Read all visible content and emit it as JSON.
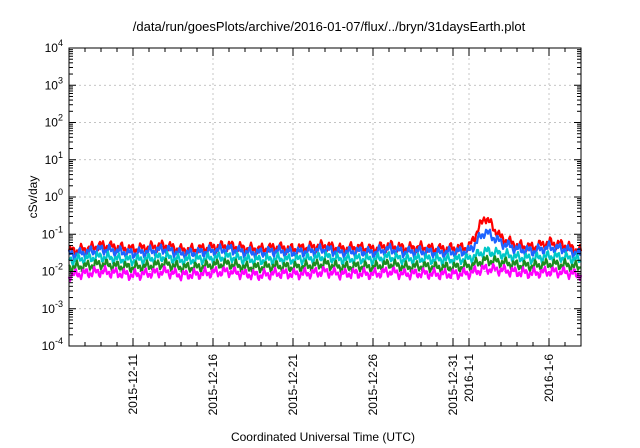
{
  "chart_data": {
    "type": "line",
    "title": "/data/run/goesPlots/archive/2016-01-07/flux/../bryn/31daysEarth.plot",
    "xlabel": "Coordinated Universal Time (UTC)",
    "ylabel": "cSv/day",
    "yscale": "log",
    "ylim": [
      0.0001,
      10000
    ],
    "xlim": [
      "2015-12-07",
      "2016-01-08"
    ],
    "grid": true,
    "legend": "none",
    "y_ticks": [
      {
        "base": "10",
        "exp": "-4",
        "value": 0.0001
      },
      {
        "base": "10",
        "exp": "-3",
        "value": 0.001
      },
      {
        "base": "10",
        "exp": "-2",
        "value": 0.01
      },
      {
        "base": "10",
        "exp": "-1",
        "value": 0.1
      },
      {
        "base": "10",
        "exp": "0",
        "value": 1
      },
      {
        "base": "10",
        "exp": "1",
        "value": 10
      },
      {
        "base": "10",
        "exp": "2",
        "value": 100
      },
      {
        "base": "10",
        "exp": "3",
        "value": 1000
      },
      {
        "base": "10",
        "exp": "4",
        "value": 10000
      }
    ],
    "x_ticks": [
      {
        "date": "2015-12-11",
        "label": "2015-12-11"
      },
      {
        "date": "2015-12-16",
        "label": "2015-12-16"
      },
      {
        "date": "2015-12-21",
        "label": "2015-12-21"
      },
      {
        "date": "2015-12-26",
        "label": "2015-12-26"
      },
      {
        "date": "2015-12-31",
        "label": "2015-12-31"
      },
      {
        "date": "2016-01-01",
        "label": "2016-1-1"
      },
      {
        "date": "2016-01-06",
        "label": "2016-1-6"
      }
    ],
    "series": [
      {
        "color": "#ff0000",
        "x": [
          "2015-12-07",
          "2015-12-08",
          "2015-12-09",
          "2015-12-10",
          "2015-12-11",
          "2015-12-12",
          "2015-12-13",
          "2015-12-14",
          "2015-12-15",
          "2015-12-16",
          "2015-12-17",
          "2015-12-18",
          "2015-12-19",
          "2015-12-20",
          "2015-12-21",
          "2015-12-22",
          "2015-12-23",
          "2015-12-24",
          "2015-12-25",
          "2015-12-26",
          "2015-12-27",
          "2015-12-28",
          "2015-12-29",
          "2015-12-30",
          "2015-12-31",
          "2016-01-01",
          "2016-01-02",
          "2016-01-03",
          "2016-01-04",
          "2016-01-05",
          "2016-01-06",
          "2016-01-07",
          "2016-01-08"
        ],
        "y": [
          0.035,
          0.04,
          0.05,
          0.045,
          0.04,
          0.045,
          0.05,
          0.038,
          0.04,
          0.045,
          0.05,
          0.042,
          0.04,
          0.045,
          0.04,
          0.045,
          0.05,
          0.04,
          0.045,
          0.04,
          0.05,
          0.042,
          0.045,
          0.04,
          0.042,
          0.045,
          0.3,
          0.08,
          0.05,
          0.045,
          0.06,
          0.05,
          0.035
        ]
      },
      {
        "color": "#1e64ff",
        "x": [
          "2015-12-07",
          "2015-12-08",
          "2015-12-09",
          "2015-12-10",
          "2015-12-11",
          "2015-12-12",
          "2015-12-13",
          "2015-12-14",
          "2015-12-15",
          "2015-12-16",
          "2015-12-17",
          "2015-12-18",
          "2015-12-19",
          "2015-12-20",
          "2015-12-21",
          "2015-12-22",
          "2015-12-23",
          "2015-12-24",
          "2015-12-25",
          "2015-12-26",
          "2015-12-27",
          "2015-12-28",
          "2015-12-29",
          "2015-12-30",
          "2015-12-31",
          "2016-01-01",
          "2016-01-02",
          "2016-01-03",
          "2016-01-04",
          "2016-01-05",
          "2016-01-06",
          "2016-01-07",
          "2016-01-08"
        ],
        "y": [
          0.028,
          0.032,
          0.04,
          0.035,
          0.03,
          0.035,
          0.04,
          0.03,
          0.032,
          0.036,
          0.04,
          0.033,
          0.032,
          0.036,
          0.032,
          0.035,
          0.04,
          0.032,
          0.035,
          0.032,
          0.04,
          0.033,
          0.035,
          0.032,
          0.033,
          0.035,
          0.12,
          0.06,
          0.04,
          0.035,
          0.045,
          0.04,
          0.028
        ]
      },
      {
        "color": "#00c8c8",
        "x": [
          "2015-12-07",
          "2015-12-08",
          "2015-12-09",
          "2015-12-10",
          "2015-12-11",
          "2015-12-12",
          "2015-12-13",
          "2015-12-14",
          "2015-12-15",
          "2015-12-16",
          "2015-12-17",
          "2015-12-18",
          "2015-12-19",
          "2015-12-20",
          "2015-12-21",
          "2015-12-22",
          "2015-12-23",
          "2015-12-24",
          "2015-12-25",
          "2015-12-26",
          "2015-12-27",
          "2015-12-28",
          "2015-12-29",
          "2015-12-30",
          "2015-12-31",
          "2016-01-01",
          "2016-01-02",
          "2016-01-03",
          "2016-01-04",
          "2016-01-05",
          "2016-01-06",
          "2016-01-07",
          "2016-01-08"
        ],
        "y": [
          0.02,
          0.022,
          0.025,
          0.022,
          0.02,
          0.022,
          0.025,
          0.02,
          0.021,
          0.023,
          0.025,
          0.021,
          0.02,
          0.022,
          0.021,
          0.022,
          0.025,
          0.021,
          0.022,
          0.021,
          0.025,
          0.021,
          0.022,
          0.021,
          0.021,
          0.022,
          0.035,
          0.03,
          0.024,
          0.022,
          0.026,
          0.024,
          0.02
        ]
      },
      {
        "color": "#1e8c1e",
        "x": [
          "2015-12-07",
          "2015-12-08",
          "2015-12-09",
          "2015-12-10",
          "2015-12-11",
          "2015-12-12",
          "2015-12-13",
          "2015-12-14",
          "2015-12-15",
          "2015-12-16",
          "2015-12-17",
          "2015-12-18",
          "2015-12-19",
          "2015-12-20",
          "2015-12-21",
          "2015-12-22",
          "2015-12-23",
          "2015-12-24",
          "2015-12-25",
          "2015-12-26",
          "2015-12-27",
          "2015-12-28",
          "2015-12-29",
          "2015-12-30",
          "2015-12-31",
          "2016-01-01",
          "2016-01-02",
          "2016-01-03",
          "2016-01-04",
          "2016-01-05",
          "2016-01-06",
          "2016-01-07",
          "2016-01-08"
        ],
        "y": [
          0.013,
          0.014,
          0.016,
          0.014,
          0.013,
          0.014,
          0.016,
          0.013,
          0.013,
          0.015,
          0.016,
          0.013,
          0.013,
          0.014,
          0.013,
          0.014,
          0.016,
          0.013,
          0.014,
          0.013,
          0.016,
          0.013,
          0.014,
          0.013,
          0.013,
          0.014,
          0.02,
          0.018,
          0.015,
          0.014,
          0.016,
          0.015,
          0.013
        ]
      },
      {
        "color": "#ff00ff",
        "x": [
          "2015-12-07",
          "2015-12-08",
          "2015-12-09",
          "2015-12-10",
          "2015-12-11",
          "2015-12-12",
          "2015-12-13",
          "2015-12-14",
          "2015-12-15",
          "2015-12-16",
          "2015-12-17",
          "2015-12-18",
          "2015-12-19",
          "2015-12-20",
          "2015-12-21",
          "2015-12-22",
          "2015-12-23",
          "2015-12-24",
          "2015-12-25",
          "2015-12-26",
          "2015-12-27",
          "2015-12-28",
          "2015-12-29",
          "2015-12-30",
          "2015-12-31",
          "2016-01-01",
          "2016-01-02",
          "2016-01-03",
          "2016-01-04",
          "2016-01-05",
          "2016-01-06",
          "2016-01-07",
          "2016-01-08"
        ],
        "y": [
          0.008,
          0.009,
          0.01,
          0.009,
          0.008,
          0.009,
          0.01,
          0.008,
          0.0085,
          0.0095,
          0.01,
          0.0085,
          0.008,
          0.009,
          0.0085,
          0.009,
          0.01,
          0.0085,
          0.009,
          0.0085,
          0.01,
          0.0085,
          0.009,
          0.0085,
          0.0085,
          0.009,
          0.012,
          0.011,
          0.0095,
          0.009,
          0.01,
          0.0095,
          0.008
        ]
      }
    ]
  }
}
